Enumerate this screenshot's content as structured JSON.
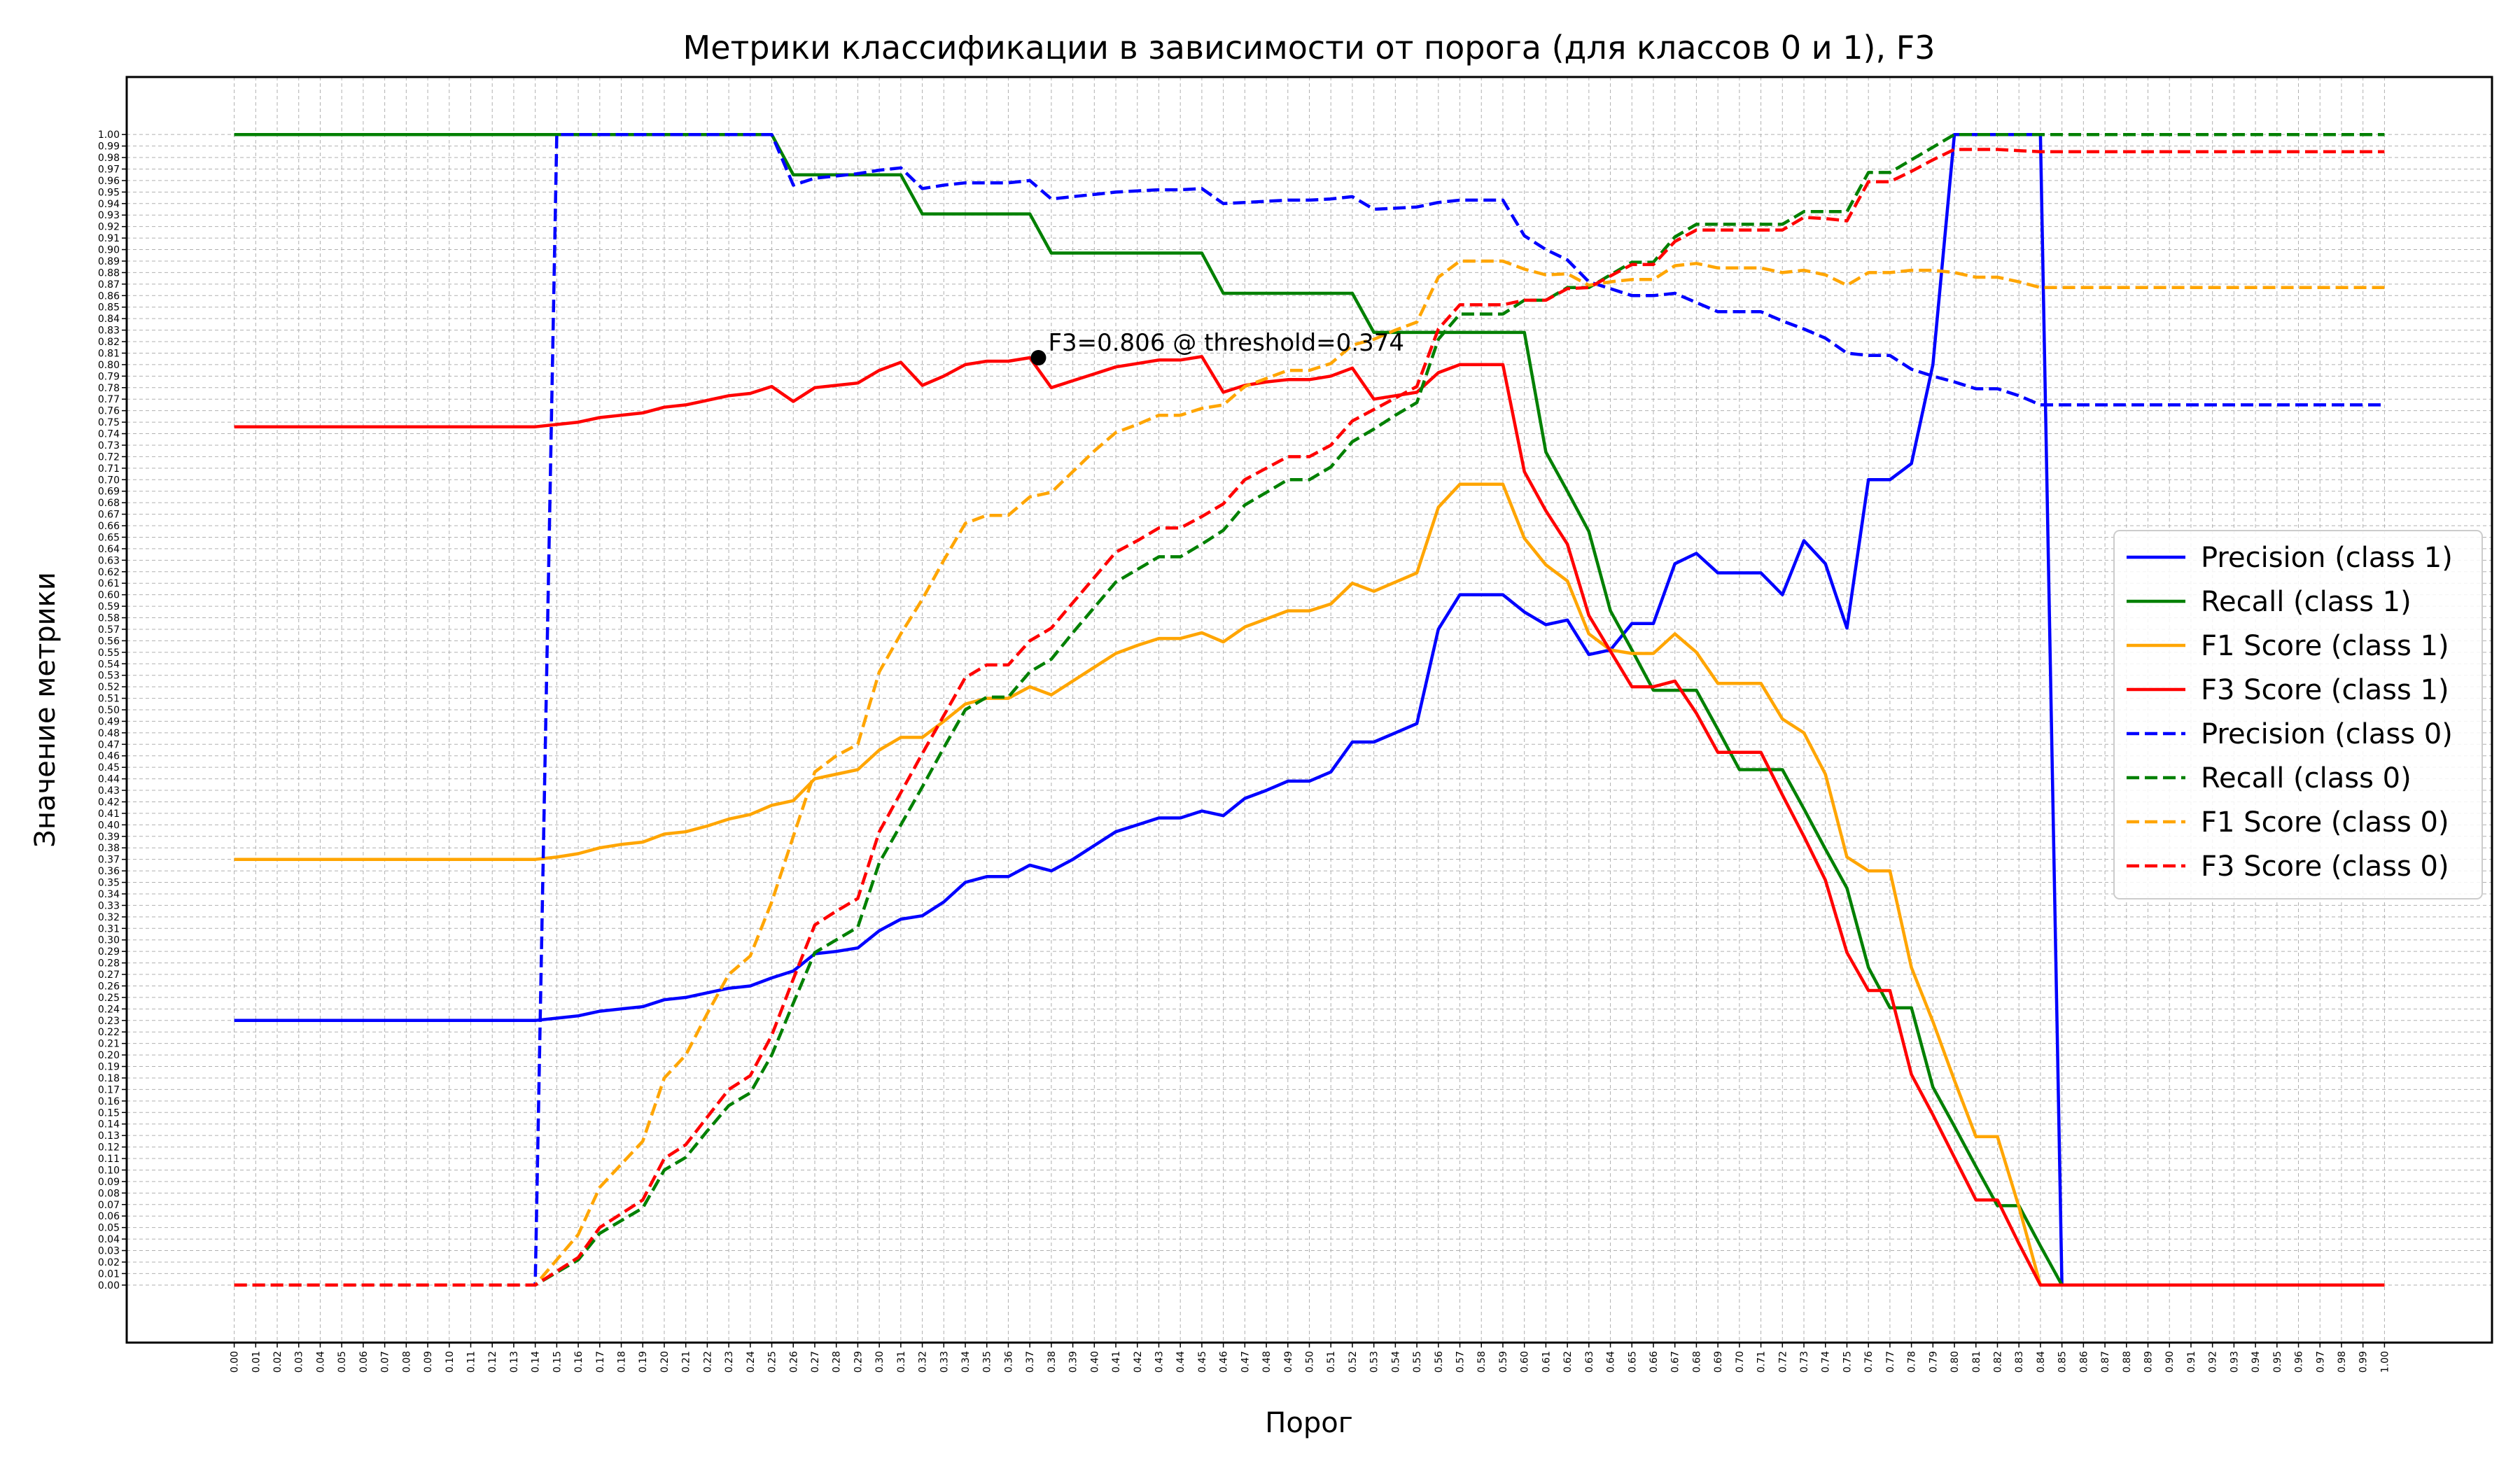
{
  "chart_data": {
    "type": "line",
    "title": "Метрики классификации в зависимости от порога (для классов 0 и 1), F3",
    "xlabel": "Порог",
    "ylabel": "Значение метрики",
    "xlim": [
      -0.05,
      1.05
    ],
    "ylim": [
      -0.05,
      1.05
    ],
    "grid": true,
    "legend_position": "center-right",
    "x": [
      0.0,
      0.01,
      0.02,
      0.03,
      0.04,
      0.05,
      0.06,
      0.07,
      0.08,
      0.09,
      0.1,
      0.11,
      0.12,
      0.13,
      0.14,
      0.15,
      0.16,
      0.17,
      0.18,
      0.19,
      0.2,
      0.21,
      0.22,
      0.23,
      0.24,
      0.25,
      0.26,
      0.27,
      0.28,
      0.29,
      0.3,
      0.31,
      0.32,
      0.33,
      0.34,
      0.35,
      0.36,
      0.37,
      0.38,
      0.39,
      0.4,
      0.41,
      0.42,
      0.43,
      0.44,
      0.45,
      0.46,
      0.47,
      0.48,
      0.49,
      0.5,
      0.51,
      0.52,
      0.53,
      0.54,
      0.55,
      0.56,
      0.57,
      0.58,
      0.59,
      0.6,
      0.61,
      0.62,
      0.63,
      0.64,
      0.65,
      0.66,
      0.67,
      0.68,
      0.69,
      0.7,
      0.71,
      0.72,
      0.73,
      0.74,
      0.75,
      0.76,
      0.77,
      0.78,
      0.79,
      0.8,
      0.81,
      0.82,
      0.83,
      0.84,
      0.85,
      0.86,
      0.87,
      0.88,
      0.89,
      0.9,
      0.91,
      0.92,
      0.93,
      0.94,
      0.95,
      0.96,
      0.97,
      0.98,
      0.99,
      1.0
    ],
    "series": [
      {
        "name": "Precision (class 1)",
        "color": "#0000ff",
        "style": "solid",
        "values": [
          0.23,
          0.23,
          0.23,
          0.23,
          0.23,
          0.23,
          0.23,
          0.23,
          0.23,
          0.23,
          0.23,
          0.23,
          0.23,
          0.23,
          0.23,
          0.232,
          0.234,
          0.238,
          0.24,
          0.242,
          0.248,
          0.25,
          0.254,
          0.258,
          0.26,
          0.267,
          0.273,
          0.288,
          0.29,
          0.293,
          0.308,
          0.318,
          0.321,
          0.333,
          0.35,
          0.355,
          0.355,
          0.365,
          0.36,
          0.37,
          0.382,
          0.394,
          0.4,
          0.406,
          0.406,
          0.412,
          0.408,
          0.423,
          0.43,
          0.438,
          0.438,
          0.446,
          0.472,
          0.472,
          0.48,
          0.488,
          0.57,
          0.6,
          0.6,
          0.6,
          0.585,
          0.574,
          0.578,
          0.548,
          0.552,
          0.575,
          0.575,
          0.627,
          0.636,
          0.619,
          0.619,
          0.619,
          0.6,
          0.647,
          0.627,
          0.571,
          0.7,
          0.7,
          0.714,
          0.8,
          1.0,
          1.0,
          1.0,
          1.0,
          1.0,
          0.0,
          0.0,
          0.0,
          0.0,
          0.0,
          0.0,
          0.0,
          0.0,
          0.0,
          0.0,
          0.0,
          0.0,
          0.0,
          0.0,
          0.0,
          0.0
        ]
      },
      {
        "name": "Recall (class 1)",
        "color": "#008000",
        "style": "solid",
        "values": [
          1.0,
          1.0,
          1.0,
          1.0,
          1.0,
          1.0,
          1.0,
          1.0,
          1.0,
          1.0,
          1.0,
          1.0,
          1.0,
          1.0,
          1.0,
          1.0,
          1.0,
          1.0,
          1.0,
          1.0,
          1.0,
          1.0,
          1.0,
          1.0,
          1.0,
          1.0,
          0.965,
          0.965,
          0.965,
          0.965,
          0.965,
          0.965,
          0.931,
          0.931,
          0.931,
          0.931,
          0.931,
          0.931,
          0.897,
          0.897,
          0.897,
          0.897,
          0.897,
          0.897,
          0.897,
          0.897,
          0.862,
          0.862,
          0.862,
          0.862,
          0.862,
          0.862,
          0.862,
          0.828,
          0.828,
          0.828,
          0.828,
          0.828,
          0.828,
          0.828,
          0.828,
          0.724,
          0.69,
          0.655,
          0.586,
          0.552,
          0.517,
          0.517,
          0.517,
          0.483,
          0.448,
          0.448,
          0.448,
          0.414,
          0.379,
          0.345,
          0.276,
          0.241,
          0.241,
          0.172,
          0.138,
          0.103,
          0.069,
          0.069,
          0.034,
          0.0,
          0.0,
          0.0,
          0.0,
          0.0,
          0.0,
          0.0,
          0.0,
          0.0,
          0.0,
          0.0,
          0.0,
          0.0,
          0.0,
          0.0,
          0.0
        ]
      },
      {
        "name": "F1 Score (class 1)",
        "color": "#ffa500",
        "style": "solid",
        "values": [
          0.37,
          0.37,
          0.37,
          0.37,
          0.37,
          0.37,
          0.37,
          0.37,
          0.37,
          0.37,
          0.37,
          0.37,
          0.37,
          0.37,
          0.37,
          0.372,
          0.375,
          0.38,
          0.383,
          0.385,
          0.392,
          0.394,
          0.399,
          0.405,
          0.409,
          0.417,
          0.421,
          0.44,
          0.444,
          0.448,
          0.465,
          0.476,
          0.476,
          0.49,
          0.505,
          0.51,
          0.51,
          0.52,
          0.513,
          0.525,
          0.537,
          0.549,
          0.556,
          0.562,
          0.562,
          0.567,
          0.559,
          0.572,
          0.579,
          0.586,
          0.586,
          0.592,
          0.61,
          0.603,
          0.611,
          0.619,
          0.676,
          0.696,
          0.696,
          0.696,
          0.649,
          0.626,
          0.612,
          0.566,
          0.552,
          0.549,
          0.549,
          0.566,
          0.55,
          0.523,
          0.523,
          0.523,
          0.492,
          0.48,
          0.444,
          0.372,
          0.36,
          0.36,
          0.276,
          0.229,
          0.178,
          0.129,
          0.129,
          0.068,
          0.0,
          0.0,
          0.0,
          0.0,
          0.0,
          0.0,
          0.0,
          0.0,
          0.0,
          0.0,
          0.0,
          0.0,
          0.0,
          0.0,
          0.0,
          0.0,
          0.0
        ]
      },
      {
        "name": "F3 Score (class 1)",
        "color": "#ff0000",
        "style": "solid",
        "values": [
          0.746,
          0.746,
          0.746,
          0.746,
          0.746,
          0.746,
          0.746,
          0.746,
          0.746,
          0.746,
          0.746,
          0.746,
          0.746,
          0.746,
          0.746,
          0.748,
          0.75,
          0.754,
          0.756,
          0.758,
          0.763,
          0.765,
          0.769,
          0.773,
          0.775,
          0.781,
          0.768,
          0.78,
          0.782,
          0.784,
          0.795,
          0.802,
          0.782,
          0.79,
          0.8,
          0.803,
          0.803,
          0.806,
          0.78,
          0.786,
          0.792,
          0.798,
          0.801,
          0.804,
          0.804,
          0.807,
          0.776,
          0.782,
          0.785,
          0.787,
          0.787,
          0.79,
          0.797,
          0.77,
          0.773,
          0.776,
          0.793,
          0.8,
          0.8,
          0.8,
          0.707,
          0.673,
          0.644,
          0.582,
          0.551,
          0.52,
          0.52,
          0.525,
          0.497,
          0.463,
          0.463,
          0.463,
          0.426,
          0.39,
          0.352,
          0.289,
          0.256,
          0.256,
          0.183,
          0.148,
          0.111,
          0.074,
          0.074,
          0.036,
          0.0,
          0.0,
          0.0,
          0.0,
          0.0,
          0.0,
          0.0,
          0.0,
          0.0,
          0.0,
          0.0,
          0.0,
          0.0,
          0.0,
          0.0,
          0.0,
          0.0
        ]
      },
      {
        "name": "Precision (class 0)",
        "color": "#0000ff",
        "style": "dashed",
        "values": [
          0.0,
          0.0,
          0.0,
          0.0,
          0.0,
          0.0,
          0.0,
          0.0,
          0.0,
          0.0,
          0.0,
          0.0,
          0.0,
          0.0,
          0.0,
          1.0,
          1.0,
          1.0,
          1.0,
          1.0,
          1.0,
          1.0,
          1.0,
          1.0,
          1.0,
          1.0,
          0.956,
          0.962,
          0.964,
          0.966,
          0.969,
          0.971,
          0.953,
          0.956,
          0.958,
          0.958,
          0.958,
          0.96,
          0.944,
          0.946,
          0.948,
          0.95,
          0.951,
          0.952,
          0.952,
          0.953,
          0.94,
          0.941,
          0.942,
          0.943,
          0.943,
          0.944,
          0.946,
          0.935,
          0.936,
          0.937,
          0.941,
          0.943,
          0.943,
          0.943,
          0.912,
          0.9,
          0.891,
          0.872,
          0.866,
          0.86,
          0.86,
          0.862,
          0.854,
          0.846,
          0.846,
          0.846,
          0.838,
          0.831,
          0.823,
          0.81,
          0.808,
          0.808,
          0.796,
          0.79,
          0.785,
          0.779,
          0.779,
          0.773,
          0.765,
          0.765,
          0.765,
          0.765,
          0.765,
          0.765,
          0.765,
          0.765,
          0.765,
          0.765,
          0.765,
          0.765,
          0.765,
          0.765,
          0.765,
          0.765,
          0.765
        ]
      },
      {
        "name": "Recall (class 0)",
        "color": "#008000",
        "style": "dashed",
        "values": [
          0.0,
          0.0,
          0.0,
          0.0,
          0.0,
          0.0,
          0.0,
          0.0,
          0.0,
          0.0,
          0.0,
          0.0,
          0.0,
          0.0,
          0.0,
          0.011,
          0.022,
          0.045,
          0.056,
          0.067,
          0.1,
          0.111,
          0.134,
          0.156,
          0.167,
          0.2,
          0.245,
          0.289,
          0.3,
          0.311,
          0.367,
          0.4,
          0.433,
          0.467,
          0.5,
          0.511,
          0.511,
          0.533,
          0.544,
          0.567,
          0.589,
          0.611,
          0.622,
          0.633,
          0.633,
          0.644,
          0.656,
          0.678,
          0.689,
          0.7,
          0.7,
          0.711,
          0.733,
          0.744,
          0.756,
          0.767,
          0.822,
          0.844,
          0.844,
          0.844,
          0.856,
          0.856,
          0.867,
          0.867,
          0.878,
          0.889,
          0.889,
          0.911,
          0.922,
          0.922,
          0.922,
          0.922,
          0.922,
          0.933,
          0.933,
          0.933,
          0.967,
          0.967,
          0.978,
          0.989,
          1.0,
          1.0,
          1.0,
          1.0,
          1.0,
          1.0,
          1.0,
          1.0,
          1.0,
          1.0,
          1.0,
          1.0,
          1.0,
          1.0,
          1.0,
          1.0,
          1.0,
          1.0,
          1.0,
          1.0,
          1.0
        ]
      },
      {
        "name": "F1 Score (class 0)",
        "color": "#ffa500",
        "style": "dashed",
        "values": [
          0.0,
          0.0,
          0.0,
          0.0,
          0.0,
          0.0,
          0.0,
          0.0,
          0.0,
          0.0,
          0.0,
          0.0,
          0.0,
          0.0,
          0.0,
          0.022,
          0.044,
          0.085,
          0.105,
          0.125,
          0.18,
          0.2,
          0.236,
          0.27,
          0.286,
          0.333,
          0.39,
          0.446,
          0.46,
          0.47,
          0.533,
          0.566,
          0.596,
          0.63,
          0.662,
          0.669,
          0.669,
          0.685,
          0.689,
          0.707,
          0.725,
          0.741,
          0.748,
          0.756,
          0.756,
          0.762,
          0.765,
          0.781,
          0.788,
          0.795,
          0.795,
          0.801,
          0.817,
          0.822,
          0.83,
          0.837,
          0.876,
          0.89,
          0.89,
          0.89,
          0.883,
          0.878,
          0.879,
          0.869,
          0.872,
          0.874,
          0.874,
          0.886,
          0.888,
          0.884,
          0.884,
          0.884,
          0.88,
          0.882,
          0.878,
          0.869,
          0.88,
          0.88,
          0.882,
          0.882,
          0.88,
          0.876,
          0.876,
          0.872,
          0.867,
          0.867,
          0.867,
          0.867,
          0.867,
          0.867,
          0.867,
          0.867,
          0.867,
          0.867,
          0.867,
          0.867,
          0.867,
          0.867,
          0.867,
          0.867,
          0.867
        ]
      },
      {
        "name": "F3 Score (class 0)",
        "color": "#ff0000",
        "style": "dashed",
        "values": [
          0.0,
          0.0,
          0.0,
          0.0,
          0.0,
          0.0,
          0.0,
          0.0,
          0.0,
          0.0,
          0.0,
          0.0,
          0.0,
          0.0,
          0.0,
          0.012,
          0.024,
          0.05,
          0.062,
          0.074,
          0.11,
          0.122,
          0.146,
          0.17,
          0.182,
          0.217,
          0.266,
          0.313,
          0.325,
          0.336,
          0.394,
          0.428,
          0.462,
          0.495,
          0.528,
          0.539,
          0.539,
          0.56,
          0.571,
          0.593,
          0.615,
          0.637,
          0.647,
          0.658,
          0.658,
          0.668,
          0.679,
          0.7,
          0.71,
          0.72,
          0.72,
          0.73,
          0.751,
          0.761,
          0.771,
          0.781,
          0.831,
          0.852,
          0.852,
          0.852,
          0.856,
          0.856,
          0.866,
          0.867,
          0.877,
          0.887,
          0.887,
          0.907,
          0.917,
          0.917,
          0.917,
          0.917,
          0.917,
          0.928,
          0.927,
          0.925,
          0.959,
          0.959,
          0.968,
          0.978,
          0.987,
          0.987,
          0.987,
          0.986,
          0.985,
          0.985,
          0.985,
          0.985,
          0.985,
          0.985,
          0.985,
          0.985,
          0.985,
          0.985,
          0.985,
          0.985,
          0.985,
          0.985,
          0.985,
          0.985,
          0.985
        ]
      }
    ],
    "annotation": {
      "text": "F3=0.806 @ threshold=0.374",
      "x": 0.374,
      "y": 0.806
    }
  }
}
